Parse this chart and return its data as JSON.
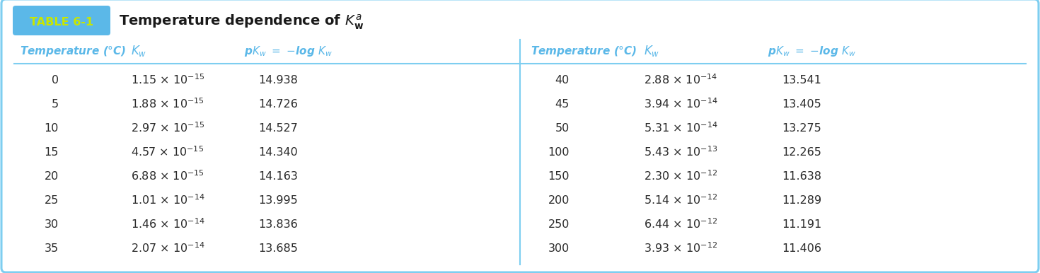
{
  "title_label": "TABLE 6-1",
  "title_text": "Temperature dependence of ",
  "header_color": "#5bb8e8",
  "border_color": "#7ecef0",
  "bg_color": "#ffffff",
  "badge_bg_color": "#5bb8e8",
  "badge_text_color": "#c8e600",
  "title_text_color": "#1a1a1a",
  "data_text_color": "#2a2a2a",
  "divider_color": "#7ecef0",
  "left_temp": [
    "0",
    "5",
    "10",
    "15",
    "20",
    "25",
    "30",
    "35"
  ],
  "left_kw": [
    "1.15 × 10$^{-15}$",
    "1.88 × 10$^{-15}$",
    "2.97 × 10$^{-15}$",
    "4.57 × 10$^{-15}$",
    "6.88 × 10$^{-15}$",
    "1.01 × 10$^{-14}$",
    "1.46 × 10$^{-14}$",
    "2.07 × 10$^{-14}$"
  ],
  "left_pkw": [
    "14.938",
    "14.726",
    "14.527",
    "14.340",
    "14.163",
    "13.995",
    "13.836",
    "13.685"
  ],
  "right_temp": [
    "40",
    "45",
    "50",
    "100",
    "150",
    "200",
    "250",
    "300"
  ],
  "right_kw": [
    "2.88 × 10$^{-14}$",
    "3.94 × 10$^{-14}$",
    "5.31 × 10$^{-14}$",
    "5.43 × 10$^{-13}$",
    "2.30 × 10$^{-12}$",
    "5.14 × 10$^{-12}$",
    "6.44 × 10$^{-12}$",
    "3.93 × 10$^{-12}$"
  ],
  "right_pkw": [
    "13.541",
    "13.405",
    "13.275",
    "12.265",
    "11.638",
    "11.289",
    "11.191",
    "11.406"
  ],
  "figwidth": 14.7,
  "figheight": 3.86,
  "dpi": 100
}
